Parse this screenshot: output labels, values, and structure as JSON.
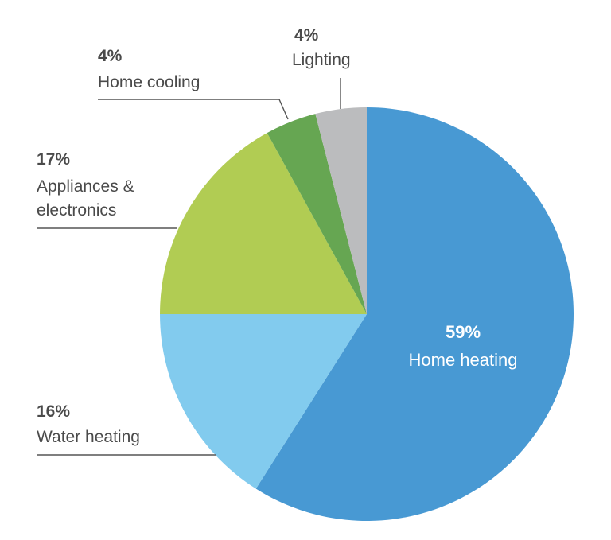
{
  "chart_data": {
    "type": "pie",
    "title": "",
    "start_angle_deg": 0,
    "direction": "clockwise",
    "slices": [
      {
        "label": "Home heating",
        "value": 59,
        "value_text": "59%",
        "color": "#4899d3"
      },
      {
        "label": "Water heating",
        "value": 16,
        "value_text": "16%",
        "color": "#82cbee"
      },
      {
        "label": "Appliances & electronics",
        "label_lines": [
          "Appliances &",
          "electronics"
        ],
        "value": 17,
        "value_text": "17%",
        "color": "#b1cc53"
      },
      {
        "label": "Home cooling",
        "value": 4,
        "value_text": "4%",
        "color": "#66a652"
      },
      {
        "label": "Lighting",
        "value": 4,
        "value_text": "4%",
        "color": "#bbbcbe"
      }
    ]
  }
}
